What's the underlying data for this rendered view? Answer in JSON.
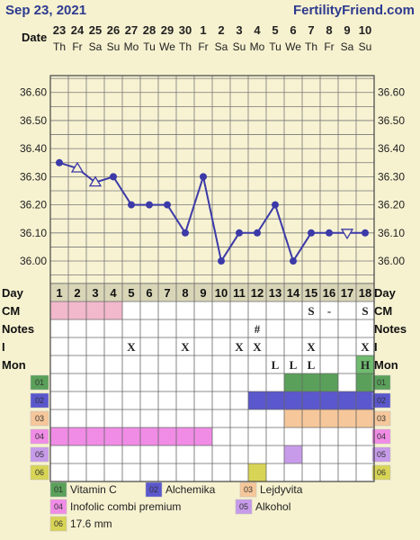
{
  "header": {
    "date": "Sep 23, 2021",
    "brand": "FertilityFriend.com"
  },
  "chart_data": {
    "type": "line",
    "date_label": "Date",
    "dates": [
      "23",
      "24",
      "25",
      "26",
      "27",
      "28",
      "29",
      "30",
      "1",
      "2",
      "3",
      "4",
      "5",
      "6",
      "7",
      "8",
      "9",
      "10"
    ],
    "weekdays": [
      "Th",
      "Fr",
      "Sa",
      "Su",
      "Mo",
      "Tu",
      "We",
      "Th",
      "Fr",
      "Sa",
      "Su",
      "Mo",
      "Tu",
      "We",
      "Th",
      "Fr",
      "Sa",
      "Su"
    ],
    "yticks": [
      "36.60",
      "36.50",
      "36.40",
      "36.30",
      "36.20",
      "36.10",
      "36.00"
    ],
    "ylim": [
      35.92,
      36.66
    ],
    "temps": [
      36.35,
      36.33,
      36.28,
      36.3,
      36.2,
      36.2,
      36.2,
      36.1,
      36.3,
      36.0,
      36.1,
      36.1,
      36.2,
      36.0,
      36.1,
      36.1,
      36.1,
      36.1
    ],
    "markers": [
      "circle",
      "tri-up",
      "tri-up",
      "circle",
      "circle",
      "circle",
      "circle",
      "circle",
      "circle",
      "circle",
      "circle",
      "circle",
      "circle",
      "circle",
      "circle",
      "circle",
      "tri-down",
      "circle"
    ],
    "line_color": "#3c3aa8"
  },
  "grid": {
    "days": [
      "1",
      "2",
      "3",
      "4",
      "5",
      "6",
      "7",
      "8",
      "9",
      "10",
      "11",
      "12",
      "13",
      "14",
      "15",
      "16",
      "17",
      "18"
    ],
    "rows": [
      {
        "label": "Day",
        "label_right": "Day"
      },
      {
        "label": "CM",
        "label_right": "CM",
        "fill": "#f2b8cc",
        "fill_days": [
          1,
          2,
          3,
          4
        ],
        "symbols": {
          "15": "S",
          "16": "-",
          "18": "S"
        }
      },
      {
        "label": "Notes",
        "label_right": "Notes",
        "symbols": {
          "12": "#"
        }
      },
      {
        "label": "I",
        "label_right": "I",
        "symbols": {
          "5": "X",
          "8": "X",
          "11": "X",
          "12": "X",
          "15": "X",
          "18": "X"
        }
      },
      {
        "label": "Mon",
        "label_right": "Mon",
        "symbols": {
          "13": "L",
          "14": "L",
          "15": "L",
          "18": "H"
        },
        "fill": "#6fbb6f",
        "fill_days": [
          18
        ]
      },
      {
        "code": "01",
        "code_color": "#5aa05a",
        "fill": "#5aa05a",
        "fill_days": [
          14,
          15,
          16,
          18
        ]
      },
      {
        "code": "02",
        "code_color": "#5b57cc",
        "fill": "#5b57cc",
        "fill_days": [
          12,
          13,
          14,
          15,
          16,
          17,
          18
        ]
      },
      {
        "code": "03",
        "code_color": "#f6c79a",
        "fill": "#f6c79a",
        "fill_days": [
          14,
          15,
          16,
          17,
          18
        ]
      },
      {
        "code": "04",
        "code_color": "#f08ce6",
        "fill": "#f08ce6",
        "fill_days": [
          1,
          2,
          3,
          4,
          5,
          6,
          7,
          8,
          9
        ]
      },
      {
        "code": "05",
        "code_color": "#c79bea",
        "fill": "#c79bea",
        "fill_days": [
          14
        ]
      },
      {
        "code": "06",
        "code_color": "#d8d455",
        "fill": "#d8d455",
        "fill_days": [
          12
        ]
      }
    ]
  },
  "legend": [
    {
      "code": "01",
      "label": "Vitamin C",
      "color": "#5aa05a"
    },
    {
      "code": "02",
      "label": "Alchemika",
      "color": "#5b57cc"
    },
    {
      "code": "03",
      "label": "Lejdyvita",
      "color": "#f6c79a"
    },
    {
      "code": "04",
      "label": "Inofolic combi premium",
      "color": "#f08ce6"
    },
    {
      "code": "05",
      "label": "Alkohol",
      "color": "#c79bea"
    },
    {
      "code": "06",
      "label": "17.6 mm",
      "color": "#d8d455"
    }
  ]
}
